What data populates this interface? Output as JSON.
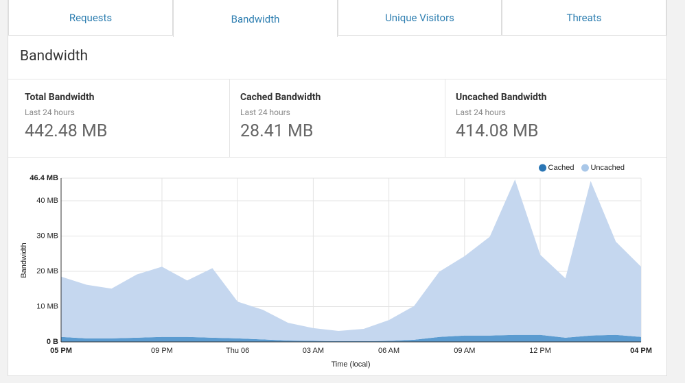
{
  "tabs": [
    "Requests",
    "Bandwidth",
    "Unique Visitors",
    "Threats"
  ],
  "heading": "Bandwidth",
  "stats": [
    {
      "title": "Total Bandwidth",
      "subtitle": "Last 24 hours",
      "value": "442.48 MB"
    },
    {
      "title": "Cached Bandwidth",
      "subtitle": "Last 24 hours",
      "value": "28.41 MB"
    },
    {
      "title": "Uncached Bandwidth",
      "subtitle": "Last 24 hours",
      "value": "414.08 MB"
    }
  ],
  "chart_data": {
    "type": "stacked-area",
    "x_label": "Time (local)",
    "y_label": "Bandwidth",
    "categories": [
      "05 PM",
      null,
      null,
      null,
      "09 PM",
      null,
      null,
      "Thu 06",
      null,
      null,
      "03 AM",
      null,
      null,
      "06 AM",
      null,
      null,
      "09 AM",
      null,
      null,
      "12 PM",
      null,
      null,
      null,
      "04 PM"
    ],
    "series": [
      {
        "name": "Cached",
        "color": "#5b9bd0",
        "legend_color": "#2a76b5",
        "values": [
          1.4,
          1.0,
          1.0,
          1.2,
          1.4,
          1.4,
          1.2,
          1.0,
          0.7,
          0.4,
          0.3,
          0.2,
          0.2,
          0.3,
          0.6,
          1.4,
          1.8,
          1.8,
          2.0,
          2.0,
          1.2,
          1.8,
          2.0,
          1.4
        ]
      },
      {
        "name": "Uncached",
        "color": "#c5d7ef",
        "legend_color": "#a9c7e8",
        "values": [
          17.1,
          15.2,
          14.1,
          17.9,
          19.9,
          16.0,
          19.7,
          10.4,
          8.4,
          5.0,
          3.6,
          2.9,
          3.5,
          5.9,
          9.6,
          18.5,
          22.5,
          28.0,
          44.0,
          22.7,
          16.8,
          43.8,
          26.4,
          19.9
        ]
      }
    ],
    "ylim": [
      0,
      46.4
    ],
    "yticks": [
      {
        "value": 0,
        "label": "0 B"
      },
      {
        "value": 10,
        "label": "10 MB"
      },
      {
        "value": 20,
        "label": "20 MB"
      },
      {
        "value": 30,
        "label": "30 MB"
      },
      {
        "value": 40,
        "label": "40 MB"
      },
      {
        "value": 46.4,
        "label": "46.4 MB"
      }
    ],
    "grid": true,
    "legend": "top-right"
  }
}
